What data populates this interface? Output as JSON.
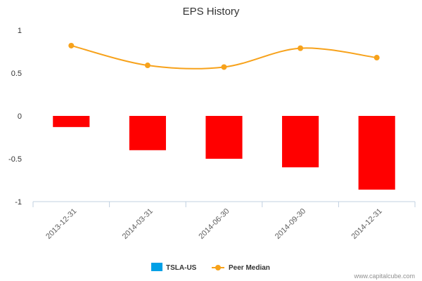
{
  "chart_data": {
    "type": "bar",
    "title": "EPS History",
    "categories": [
      "2013-12-31",
      "2014-03-31",
      "2014-06-30",
      "2014-09-30",
      "2014-12-31"
    ],
    "series": [
      {
        "name": "TSLA-US",
        "type": "bar",
        "values": [
          -0.13,
          -0.4,
          -0.5,
          -0.6,
          -0.86
        ],
        "color": "#ff0000",
        "legend_color": "#00a0e6"
      },
      {
        "name": "Peer Median",
        "type": "line",
        "values": [
          0.82,
          0.59,
          0.57,
          0.79,
          0.68
        ],
        "color": "#f7a21b"
      }
    ],
    "yticks": [
      "1",
      "0.5",
      "0",
      "-0.5",
      "-1"
    ],
    "ylim": [
      -1,
      1
    ],
    "xlabel": "",
    "ylabel": "",
    "legend": "bottom-center",
    "grid": false
  },
  "credit": "www.capitalcube.com"
}
